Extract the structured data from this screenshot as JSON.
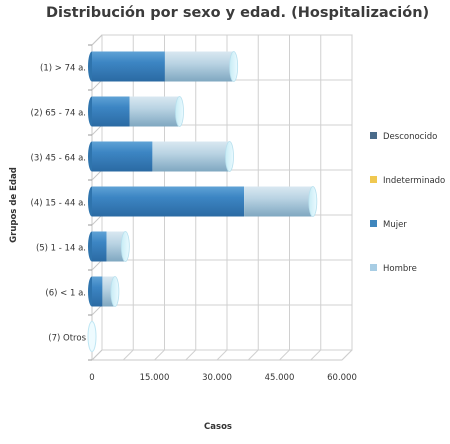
{
  "chart_data": {
    "type": "bar",
    "orientation": "horizontal",
    "stacked": true,
    "title": "Distribución por sexo y edad. (Hospitalización)",
    "xlabel": "Casos",
    "ylabel": "Grupos de Edad",
    "categories": [
      "(1) > 74 a.",
      "(2) 65 - 74 a.",
      "(3) 45 - 64 a.",
      "(4) 15 - 44 a.",
      "(5) 1 - 14 a.",
      "(6) < 1 a.",
      "(7) Otros"
    ],
    "series": [
      {
        "name": "Desconocido",
        "color": "#4a6b8a",
        "values": [
          0,
          0,
          0,
          0,
          0,
          0,
          0
        ]
      },
      {
        "name": "Indeterminado",
        "color": "#f0c850",
        "values": [
          0,
          0,
          0,
          0,
          0,
          0,
          0
        ]
      },
      {
        "name": "Mujer",
        "color": "#3f86bd",
        "values": [
          17500,
          9000,
          14500,
          36500,
          3500,
          2500,
          0
        ]
      },
      {
        "name": "Hombre",
        "color": "#a8cde4",
        "values": [
          16500,
          12000,
          18500,
          16500,
          4500,
          3000,
          0
        ]
      }
    ],
    "xticks": [
      "0",
      "15.000",
      "30.000",
      "45.000",
      "60.000"
    ],
    "xlim": [
      0,
      60000
    ],
    "grid": true,
    "legend_position": "right"
  }
}
